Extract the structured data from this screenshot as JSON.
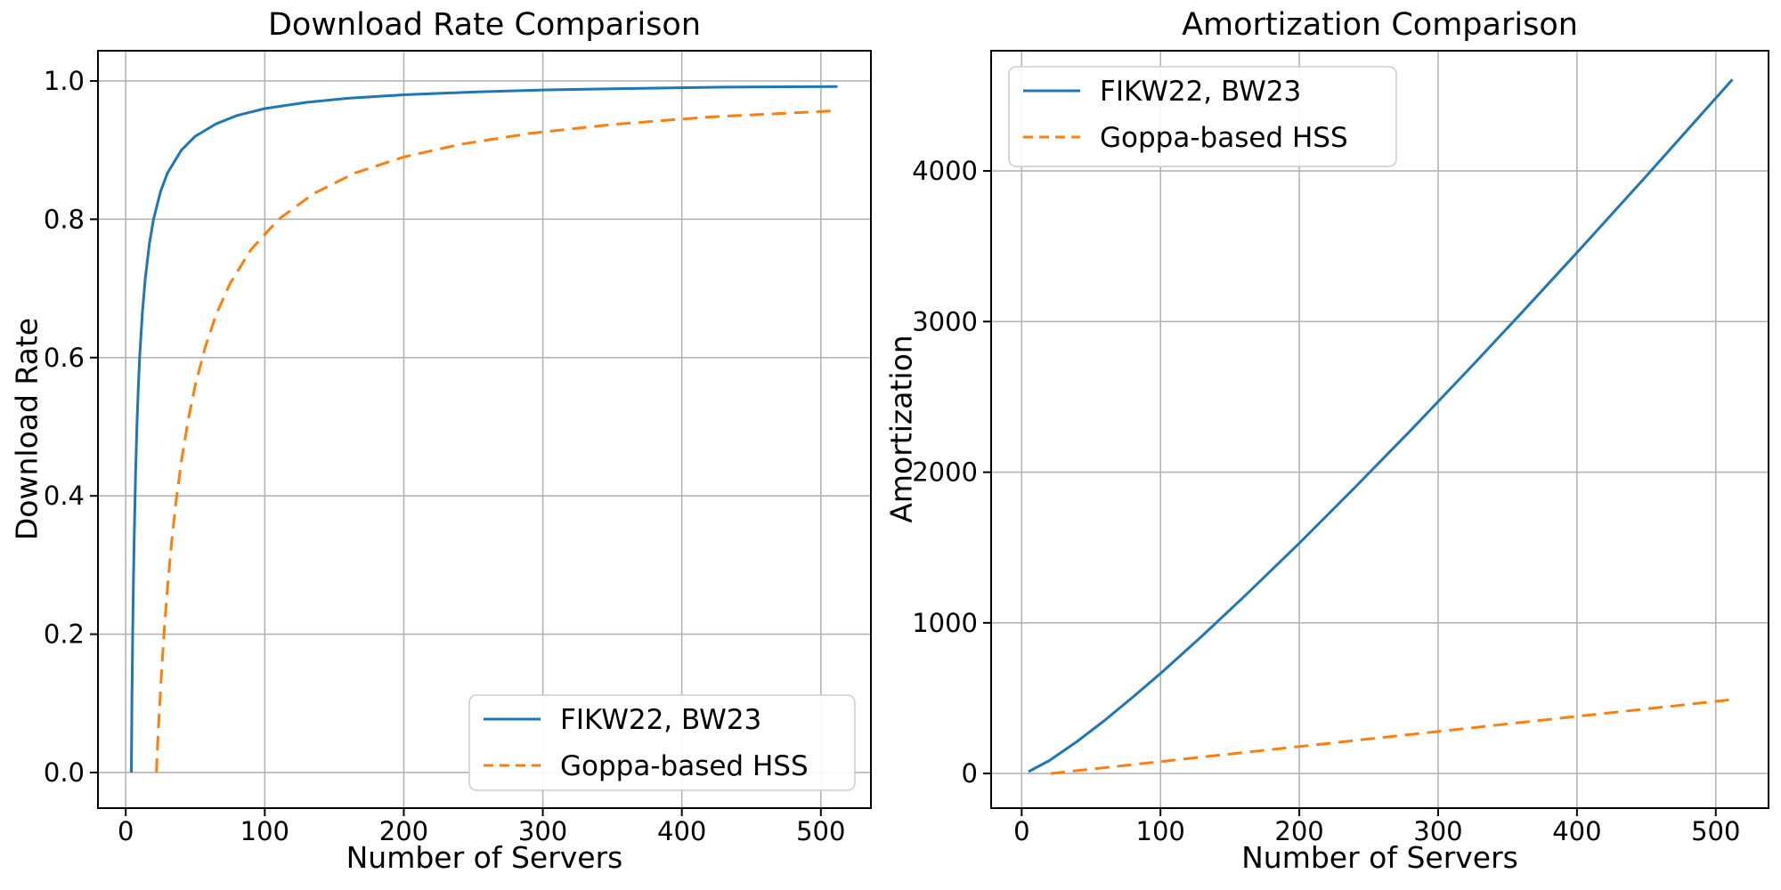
{
  "figure": {
    "background": "#ffffff"
  },
  "colors": {
    "series_blue": "#1f77b4",
    "series_orange": "#ff7f0e",
    "grid": "#b4b4b4",
    "spine": "#000000",
    "tick": "#000000",
    "text": "#000000",
    "legend_border": "#cccccc",
    "legend_background": "rgba(255,255,255,0.9)"
  },
  "chart_data": [
    {
      "type": "line",
      "title": "Download Rate Comparison",
      "xlabel": "Number of Servers",
      "ylabel": "Download Rate",
      "xlim": [
        -20,
        536
      ],
      "ylim": [
        -0.0515,
        1.0437
      ],
      "xticks": [
        0,
        100,
        200,
        300,
        400,
        500
      ],
      "xtick_labels": [
        "0",
        "100",
        "200",
        "300",
        "400",
        "500"
      ],
      "yticks": [
        0.0,
        0.2,
        0.4,
        0.6,
        0.8,
        1.0
      ],
      "ytick_labels": [
        "0.0",
        "0.2",
        "0.4",
        "0.6",
        "0.8",
        "1.0"
      ],
      "grid": true,
      "legend_position": "lower right",
      "series": [
        {
          "name": "FIKW22, BW23",
          "color": "#1f77b4",
          "style": "solid",
          "x": [
            4,
            4.5,
            5,
            5.5,
            6,
            7,
            8,
            9,
            10,
            12,
            14,
            17,
            20,
            25,
            30,
            40,
            50,
            65,
            80,
            100,
            130,
            160,
            200,
            250,
            300,
            360,
            430,
            512
          ],
          "y": [
            0,
            0.111,
            0.2,
            0.273,
            0.333,
            0.429,
            0.5,
            0.556,
            0.6,
            0.667,
            0.714,
            0.765,
            0.8,
            0.84,
            0.867,
            0.9,
            0.92,
            0.938,
            0.95,
            0.96,
            0.969,
            0.975,
            0.98,
            0.984,
            0.987,
            0.989,
            0.991,
            0.992
          ]
        },
        {
          "name": "Goppa-based HSS",
          "color": "#ff7f0e",
          "style": "dashed",
          "x": [
            22,
            23,
            24,
            25,
            26,
            28,
            30,
            33,
            36,
            40,
            45,
            50,
            57,
            65,
            75,
            90,
            110,
            135,
            165,
            200,
            240,
            290,
            350,
            420,
            512
          ],
          "y": [
            0,
            0.043,
            0.083,
            0.12,
            0.154,
            0.214,
            0.267,
            0.333,
            0.389,
            0.45,
            0.511,
            0.56,
            0.614,
            0.662,
            0.707,
            0.756,
            0.8,
            0.837,
            0.867,
            0.89,
            0.908,
            0.924,
            0.937,
            0.948,
            0.957
          ]
        }
      ]
    },
    {
      "type": "line",
      "title": "Amortization Comparison",
      "xlabel": "Number of Servers",
      "ylabel": "Amortization",
      "xlim": [
        -22,
        538
      ],
      "ylim": [
        -230,
        4798
      ],
      "xticks": [
        0,
        100,
        200,
        300,
        400,
        500
      ],
      "xtick_labels": [
        "0",
        "100",
        "200",
        "300",
        "400",
        "500"
      ],
      "yticks": [
        0,
        1000,
        2000,
        3000,
        4000
      ],
      "ytick_labels": [
        "0",
        "1000",
        "2000",
        "3000",
        "4000"
      ],
      "grid": true,
      "legend_position": "upper left",
      "series": [
        {
          "name": "FIKW22, BW23",
          "color": "#1f77b4",
          "style": "solid",
          "x": [
            5,
            20,
            40,
            60,
            80,
            100,
            130,
            160,
            200,
            240,
            280,
            320,
            360,
            400,
            450,
            512
          ],
          "y": [
            12,
            86,
            213,
            354,
            506,
            664,
            913,
            1172,
            1529,
            1898,
            2276,
            2663,
            3057,
            3458,
            3966,
            4608
          ]
        },
        {
          "name": "Goppa-based HSS",
          "color": "#ff7f0e",
          "style": "dashed",
          "x": [
            21,
            60,
            100,
            150,
            200,
            250,
            300,
            350,
            400,
            450,
            512
          ],
          "y": [
            0,
            39,
            79,
            129,
            179,
            229,
            279,
            329,
            379,
            429,
            491
          ]
        }
      ]
    }
  ]
}
